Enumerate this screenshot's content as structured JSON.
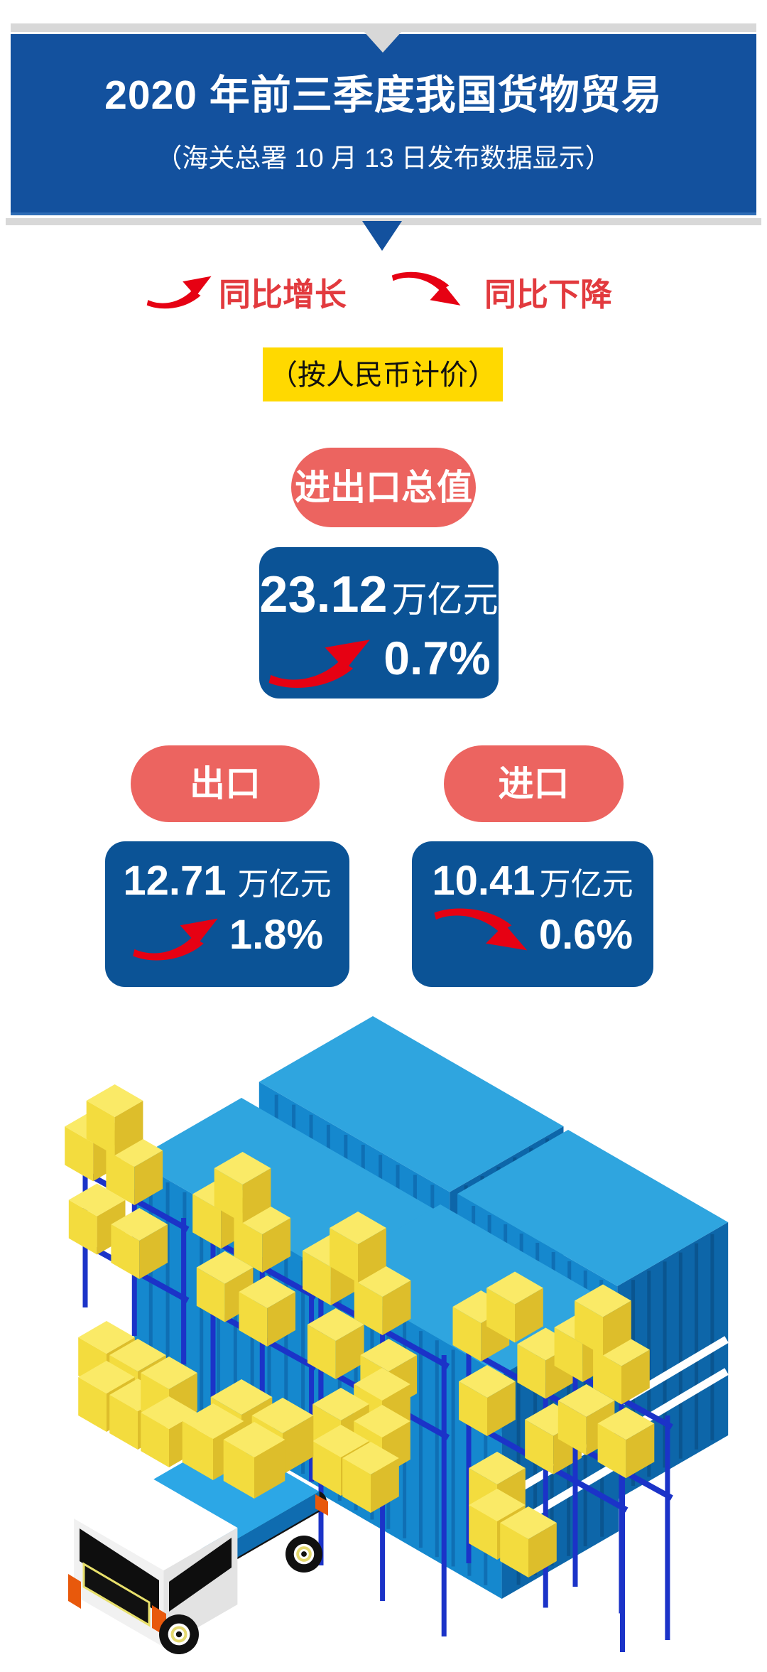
{
  "header": {
    "title": "2020 年前三季度我国货物贸易",
    "subtitle": "（海关总署 10 月 13 日发布数据显示）"
  },
  "legend": {
    "increase": "同比增长",
    "decrease": "同比下降"
  },
  "note": "（按人民币计价）",
  "stats": {
    "total": {
      "label": "进出口总值",
      "value": "23.12",
      "unit": "万亿元",
      "change": "0.7%",
      "direction": "up"
    },
    "export": {
      "label": "出口",
      "value": "12.71",
      "unit": "万亿元",
      "change": "1.8%",
      "direction": "up"
    },
    "import": {
      "label": "进口",
      "value": "10.41",
      "unit": "万亿元",
      "change": "0.6%",
      "direction": "down"
    }
  },
  "icons": {
    "increase_arrow": "curved-red-arrow-up",
    "decrease_arrow": "curved-red-arrow-down",
    "illustration": "isometric-cargo-scene: four blue shipping containers, blue racks with yellow boxes, box stacks, blue flatbed truck with white cab"
  },
  "colors": {
    "banner_blue": "#13519E",
    "stat_blue": "#0B5396",
    "pill_red": "#EC6460",
    "arrow_red": "#E60113",
    "legend_text_red": "#E23A3E",
    "note_yellow": "#FFD900",
    "divider_gray": "#D8D8D8",
    "container_blue": "#1588CE",
    "rack_blue": "#1B33C8",
    "cargo_yellow": "#F3DC3E",
    "truck_bed_blue": "#2CA7E6"
  }
}
